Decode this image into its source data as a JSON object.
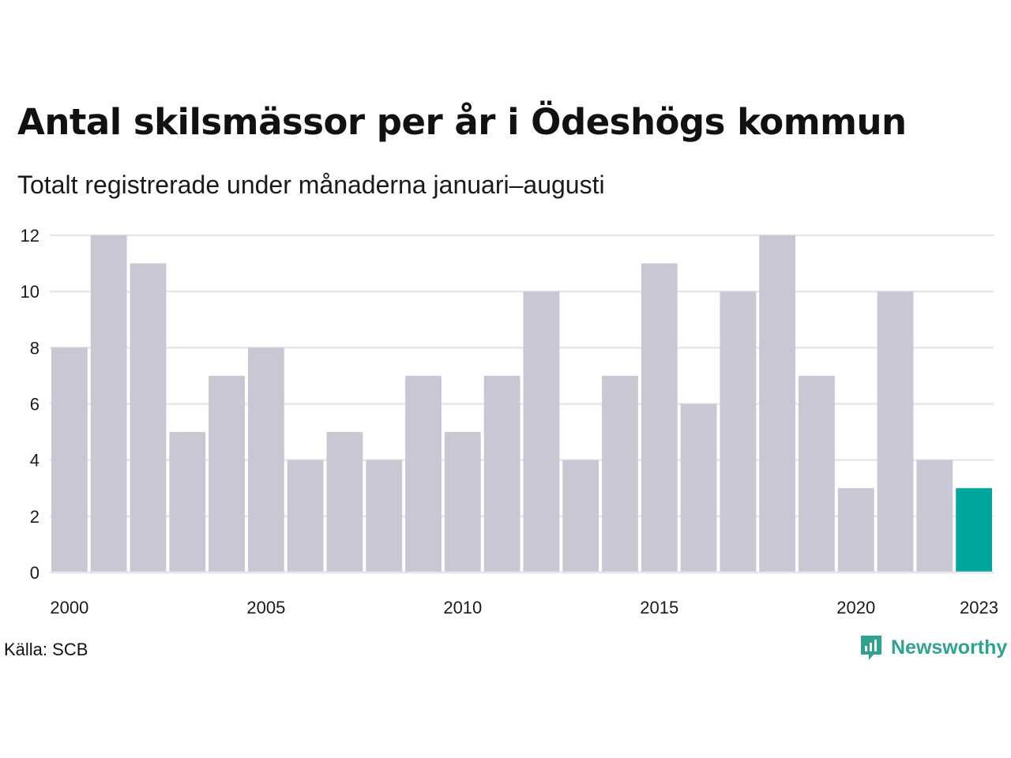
{
  "title": "Antal skilsmässor per år i Ödeshögs kommun",
  "subtitle": "Totalt registrerade under månaderna januari–augusti",
  "source": "Källa: SCB",
  "brand": "Newsworthy",
  "colors": {
    "bar": "#c8c7d3",
    "highlight": "#00a59b",
    "grid": "#e6e6e9",
    "brand": "#2fa290"
  },
  "chart_data": {
    "type": "bar",
    "categories": [
      "2000",
      "2001",
      "2002",
      "2003",
      "2004",
      "2005",
      "2006",
      "2007",
      "2008",
      "2009",
      "2010",
      "2011",
      "2012",
      "2013",
      "2014",
      "2015",
      "2016",
      "2017",
      "2018",
      "2019",
      "2020",
      "2021",
      "2022",
      "2023"
    ],
    "values": [
      8,
      12,
      11,
      5,
      7,
      8,
      4,
      5,
      4,
      7,
      5,
      7,
      10,
      4,
      7,
      11,
      6,
      10,
      12,
      7,
      3,
      10,
      4,
      3
    ],
    "highlight_index": 23,
    "x_tick_labels": [
      "2000",
      "2005",
      "2010",
      "2015",
      "2020",
      "2023"
    ],
    "y_ticks": [
      0,
      2,
      4,
      6,
      8,
      10,
      12
    ],
    "ylim": [
      0,
      12
    ],
    "grid": true,
    "legend": "none"
  }
}
